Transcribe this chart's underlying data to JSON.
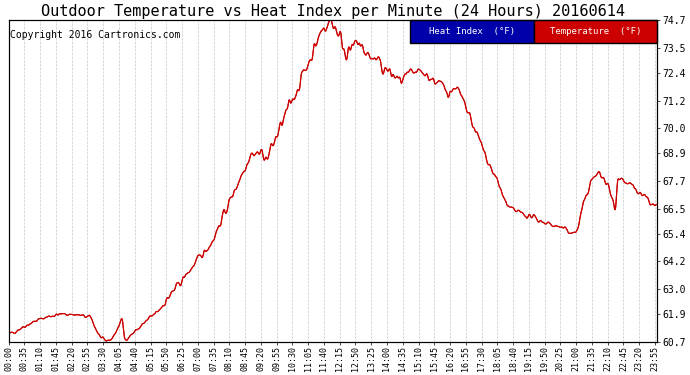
{
  "title": "Outdoor Temperature vs Heat Index per Minute (24 Hours) 20160614",
  "copyright": "Copyright 2016 Cartronics.com",
  "ylabel_right_ticks": [
    60.7,
    61.9,
    63.0,
    64.2,
    65.4,
    66.5,
    67.7,
    68.9,
    70.0,
    71.2,
    72.4,
    73.5,
    74.7
  ],
  "ylim": [
    60.7,
    74.7
  ],
  "temp_color": "#cc0000",
  "heat_color": "#cc0000",
  "background_color": "#ffffff",
  "grid_color": "#bbbbbb",
  "legend_heat_bg": "#0000aa",
  "legend_temp_bg": "#cc0000",
  "title_fontsize": 11,
  "copyright_fontsize": 7,
  "x_tick_interval": 35,
  "total_minutes": 1440
}
